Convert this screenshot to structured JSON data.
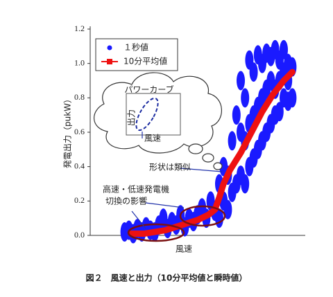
{
  "chart_data": {
    "type": "scatter",
    "title": "図２　風速と出力（10分平均値と瞬時値）",
    "x_label": "風速",
    "y_label": "発電出力（pukW）",
    "xlim": [
      0,
      1
    ],
    "ylim": [
      0,
      1.2
    ],
    "yticks": [
      {
        "value": 0,
        "label": "0.0"
      },
      0.2,
      0.4,
      0.6,
      0.8,
      {
        "value": 1,
        "label": "1.0"
      },
      1.2
    ],
    "legend": "upper left",
    "series": [
      {
        "name": "１秒値",
        "color": "#1a1aff",
        "marker": "dot",
        "x": [
          0.16,
          0.18,
          0.2,
          0.22,
          0.24,
          0.26,
          0.28,
          0.3,
          0.32,
          0.34,
          0.36,
          0.38,
          0.4,
          0.42,
          0.44,
          0.46,
          0.48,
          0.5,
          0.52,
          0.54,
          0.56,
          0.58,
          0.6,
          0.6,
          0.62,
          0.62,
          0.64,
          0.64,
          0.66,
          0.66,
          0.68,
          0.68,
          0.7,
          0.7,
          0.7,
          0.72,
          0.72,
          0.72,
          0.74,
          0.74,
          0.74,
          0.76,
          0.76,
          0.76,
          0.78,
          0.78,
          0.78,
          0.8,
          0.8,
          0.8,
          0.82,
          0.82,
          0.82,
          0.84,
          0.84,
          0.84,
          0.86,
          0.86,
          0.86,
          0.88,
          0.88,
          0.88,
          0.9,
          0.9,
          0.9,
          0.92,
          0.92,
          0.92,
          0.94,
          0.94
        ],
        "values": [
          0.02,
          0.03,
          0.01,
          0.04,
          0.02,
          0.05,
          0.03,
          0.02,
          0.06,
          0.1,
          0.04,
          0.08,
          0.06,
          0.12,
          0.05,
          0.1,
          0.08,
          0.12,
          0.16,
          0.1,
          0.2,
          0.14,
          0.1,
          0.3,
          0.2,
          0.4,
          0.15,
          0.35,
          0.25,
          0.55,
          0.3,
          0.7,
          0.35,
          0.6,
          0.9,
          0.3,
          0.55,
          0.8,
          0.4,
          0.65,
          1.02,
          0.45,
          0.7,
          0.95,
          0.5,
          0.75,
          1.05,
          0.55,
          0.8,
          1.0,
          0.6,
          0.85,
          1.06,
          0.65,
          0.9,
          1.04,
          0.7,
          0.85,
          1.08,
          0.72,
          0.9,
          1.02,
          0.8,
          0.95,
          1.08,
          0.78,
          0.9,
          1.0,
          0.8,
          0.98
        ]
      },
      {
        "name": "10分平均値",
        "color": "#ee1111",
        "marker": "line",
        "x": [
          0.19,
          0.25,
          0.3,
          0.35,
          0.4,
          0.45,
          0.5,
          0.55,
          0.58,
          0.6,
          0.62,
          0.65,
          0.7,
          0.75,
          0.8,
          0.85,
          0.9,
          0.94
        ],
        "values": [
          0.01,
          0.01,
          0.02,
          0.03,
          0.05,
          0.07,
          0.09,
          0.12,
          0.15,
          0.22,
          0.3,
          0.38,
          0.48,
          0.6,
          0.72,
          0.82,
          0.9,
          0.95
        ]
      }
    ],
    "annotations": {
      "inset_title": "パワーカーブ",
      "inset_y": "出力",
      "inset_x": "風速",
      "note": "形状は類似",
      "callout": [
        "高速・低速発電機",
        "切換の影響"
      ]
    }
  }
}
